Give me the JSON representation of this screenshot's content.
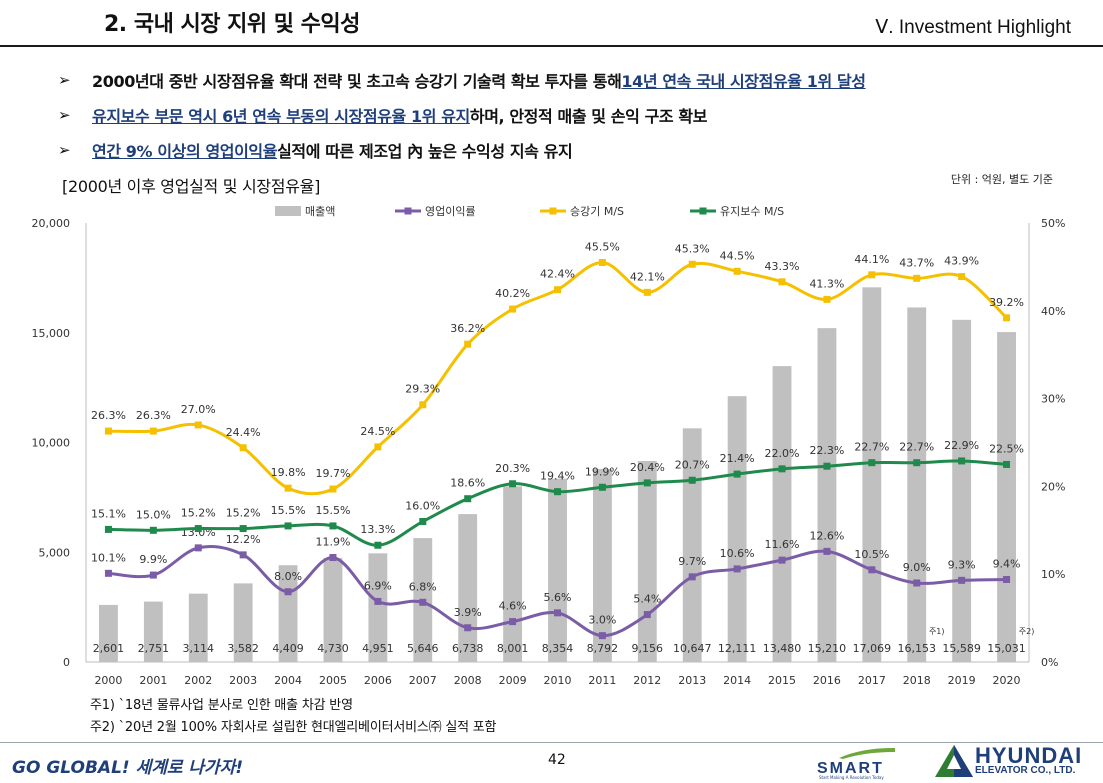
{
  "header": {
    "title": "2. 국내 시장 지위 및 수익성",
    "section": "Ⅴ. Investment Highlight"
  },
  "bullets": [
    {
      "arrow": "➢",
      "plain_before": "2000년대 중반 시장점유율 확대 전략 및 초고속 승강기 기술력 확보 투자를 통해 ",
      "highlight": "14년 연속 국내 시장점유율 1위 달성",
      "plain_after": ""
    },
    {
      "arrow": "➢",
      "plain_before": "",
      "highlight": "유지보수 부문 역시 6년 연속 부동의 시장점유율 1위 유지",
      "plain_after": "하며, 안정적 매출 및 손익 구조 확보"
    },
    {
      "arrow": "➢",
      "plain_before": "",
      "highlight": "연간 9% 이상의 영업이익율",
      "plain_after": " 실적에 따른 제조업 內 높은 수익성 지속 유지"
    }
  ],
  "chart_heading": "[2000년 이후 영업실적 및 시장점유율]",
  "unit_note": "단위 : 억원, 별도 기준",
  "chart_data": {
    "type": "bar",
    "categories": [
      "2000",
      "2001",
      "2002",
      "2003",
      "2004",
      "2005",
      "2006",
      "2007",
      "2008",
      "2009",
      "2010",
      "2011",
      "2012",
      "2013",
      "2014",
      "2015",
      "2016",
      "2017",
      "2018",
      "2019",
      "2020"
    ],
    "y_left": {
      "ylim": [
        0,
        20000
      ],
      "ticks": [
        "0",
        "5,000",
        "10,000",
        "15,000",
        "20,000"
      ]
    },
    "y_right": {
      "ylim": [
        0,
        50
      ],
      "ticks": [
        "0%",
        "10%",
        "20%",
        "30%",
        "40%",
        "50%"
      ]
    },
    "bars": {
      "name": "매출액",
      "color": "#c0c0c0",
      "values": [
        2601,
        2751,
        3114,
        3582,
        4409,
        4730,
        4951,
        5646,
        6738,
        8001,
        8354,
        8792,
        9156,
        10647,
        12111,
        13480,
        15210,
        17069,
        16153,
        15589,
        15031
      ],
      "labels": [
        "2,601",
        "2,751",
        "3,114",
        "3,582",
        "4,409",
        "4,730",
        "4,951",
        "5,646",
        "6,738",
        "8,001",
        "8,354",
        "8,792",
        "9,156",
        "10,647",
        "12,111",
        "13,480",
        "15,210",
        "17,069",
        "16,153",
        "15,589",
        "15,031"
      ]
    },
    "series": [
      {
        "name": "영업이익률",
        "color": "#7b5ca6",
        "values": [
          10.1,
          9.9,
          13.0,
          12.2,
          8.0,
          11.9,
          6.9,
          6.8,
          3.9,
          4.6,
          5.6,
          3.0,
          5.4,
          9.7,
          10.6,
          11.6,
          12.6,
          10.5,
          9.0,
          9.3,
          9.4
        ],
        "labels": [
          "10.1%",
          "9.9%",
          "13.0%",
          "12.2%",
          "8.0%",
          "11.9%",
          "6.9%",
          "6.8%",
          "3.9%",
          "4.6%",
          "5.6%",
          "3.0%",
          "5.4%",
          "9.7%",
          "10.6%",
          "11.6%",
          "12.6%",
          "10.5%",
          "9.0%",
          "9.3%",
          "9.4%"
        ]
      },
      {
        "name": "승강기 M/S",
        "color": "#f5c000",
        "values": [
          26.3,
          26.3,
          27.0,
          24.4,
          19.8,
          19.7,
          24.5,
          29.3,
          36.2,
          40.2,
          42.4,
          45.5,
          42.1,
          45.3,
          44.5,
          43.3,
          41.3,
          44.1,
          43.7,
          43.9,
          39.2
        ],
        "labels": [
          "26.3%",
          "26.3%",
          "27.0%",
          "24.4%",
          "19.8%",
          "19.7%",
          "24.5%",
          "29.3%",
          "36.2%",
          "40.2%",
          "42.4%",
          "45.5%",
          "42.1%",
          "45.3%",
          "44.5%",
          "43.3%",
          "41.3%",
          "44.1%",
          "43.7%",
          "43.9%",
          "39.2%"
        ]
      },
      {
        "name": "유지보수 M/S",
        "color": "#1f8a4c",
        "values": [
          15.1,
          15.0,
          15.2,
          15.2,
          15.5,
          15.5,
          13.3,
          16.0,
          18.6,
          20.3,
          19.4,
          19.9,
          20.4,
          20.7,
          21.4,
          22.0,
          22.3,
          22.7,
          22.7,
          22.9,
          22.5
        ],
        "labels": [
          "15.1%",
          "15.0%",
          "15.2%",
          "15.2%",
          "15.5%",
          "15.5%",
          "13.3%",
          "16.0%",
          "18.6%",
          "20.3%",
          "19.4%",
          "19.9%",
          "20.4%",
          "20.7%",
          "21.4%",
          "22.0%",
          "22.3%",
          "22.7%",
          "22.7%",
          "22.9%",
          "22.5%"
        ]
      }
    ],
    "annotations": [
      {
        "category": "2018",
        "text": "주1)"
      },
      {
        "category": "2020",
        "text": "주2)"
      }
    ],
    "legend_position": "top-center",
    "grid": false
  },
  "footnotes": [
    "주1) `18년 물류사업 분사로 인한 매출 차감 반영",
    "주2) `20년 2월 100% 자회사로 설립한 현대엘리베이터서비스㈜ 실적 포함"
  ],
  "footer": {
    "slogan": "GO GLOBAL! 세계로 나가자!",
    "page_number": "42",
    "smart_logo_text": "SMART",
    "smart_tagline": "Start Making A Revolution Today",
    "hyundai_name": "HYUNDAI",
    "hyundai_sub": "ELEVATOR CO., LTD."
  }
}
